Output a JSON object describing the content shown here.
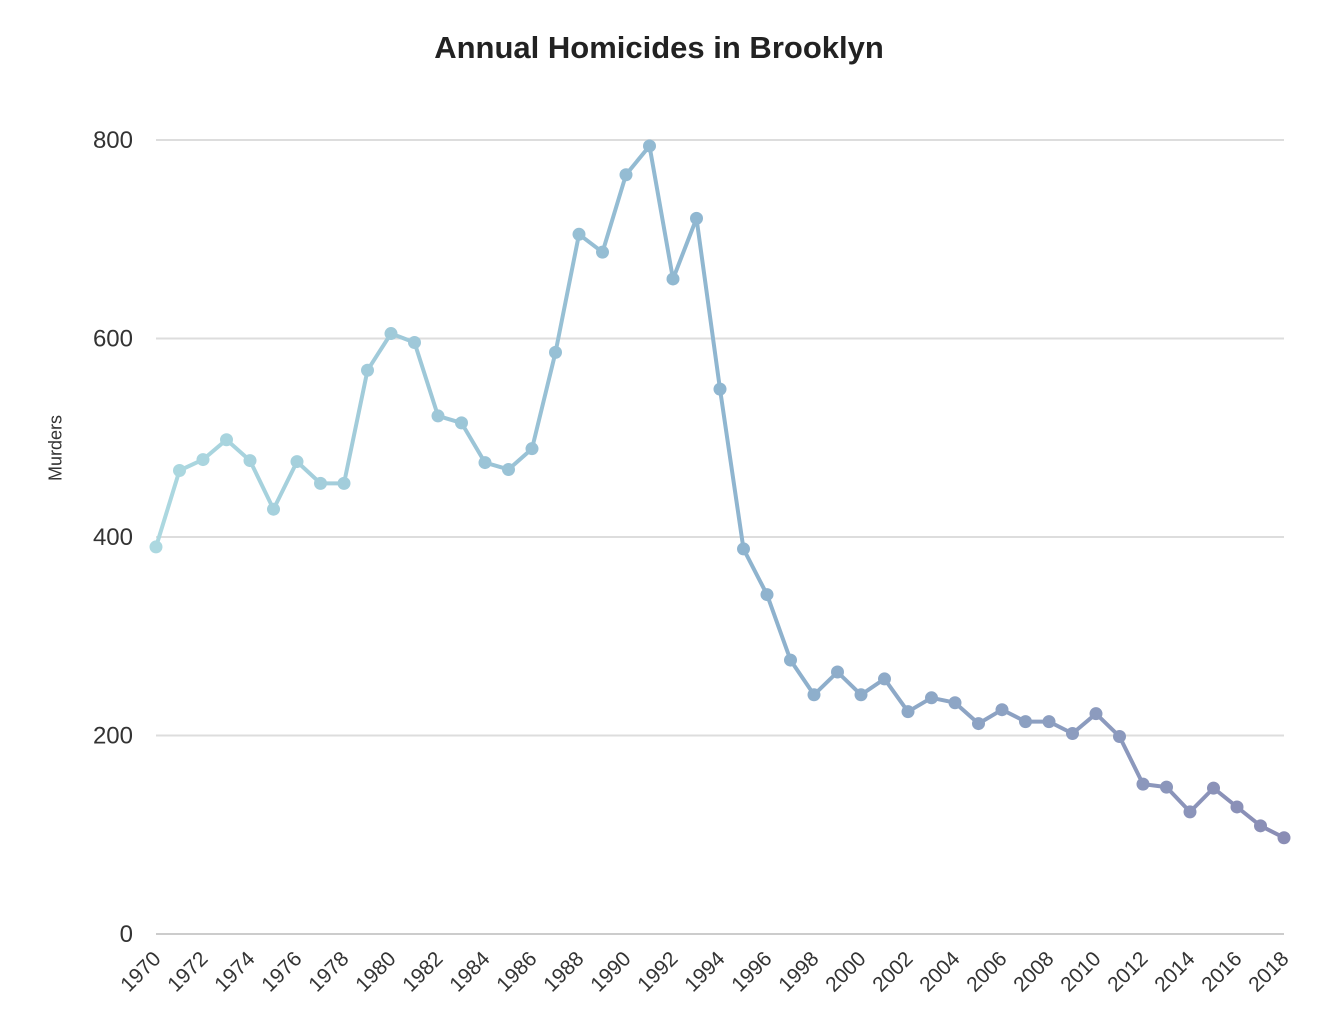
{
  "chart_data": {
    "type": "line",
    "title": "Annual Homicides in Brooklyn",
    "xlabel": "",
    "ylabel": "Murders",
    "ylim": [
      0,
      800
    ],
    "y_ticks": [
      0,
      200,
      400,
      600,
      800
    ],
    "x_tick_labels": [
      "1970",
      "1972",
      "1974",
      "1976",
      "1978",
      "1980",
      "1982",
      "1984",
      "1986",
      "1988",
      "1990",
      "1992",
      "1994",
      "1996",
      "1998",
      "2000",
      "2002",
      "2004",
      "2006",
      "2008",
      "2010",
      "2012",
      "2014",
      "2016",
      "2018"
    ],
    "grid": true,
    "legend": "none",
    "colors": {
      "start": "#acd8e0",
      "middle": "#8fb6d0",
      "end": "#8a8db5",
      "grid": "#dddddd",
      "axis": "#cccccc"
    },
    "x": [
      1970,
      1971,
      1972,
      1973,
      1974,
      1975,
      1976,
      1977,
      1978,
      1979,
      1980,
      1981,
      1982,
      1983,
      1984,
      1985,
      1986,
      1987,
      1988,
      1989,
      1990,
      1991,
      1992,
      1993,
      1994,
      1995,
      1996,
      1997,
      1998,
      1999,
      2000,
      2001,
      2002,
      2003,
      2004,
      2005,
      2006,
      2007,
      2008,
      2009,
      2010,
      2011,
      2012,
      2013,
      2014,
      2015,
      2016,
      2017,
      2018
    ],
    "series": [
      {
        "values": [
          390,
          467,
          478,
          498,
          477,
          428,
          476,
          454,
          454,
          568,
          605,
          596,
          522,
          515,
          475,
          468,
          489,
          586,
          705,
          687,
          765,
          794,
          660,
          721,
          549,
          388,
          342,
          276,
          241,
          264,
          241,
          257,
          224,
          238,
          233,
          212,
          226,
          214,
          214,
          202,
          222,
          199,
          151,
          148,
          123,
          147,
          128,
          109,
          97
        ]
      }
    ]
  }
}
